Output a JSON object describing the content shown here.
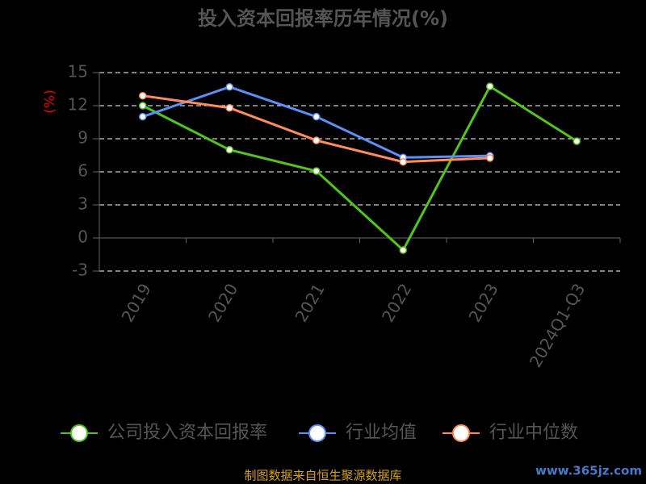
{
  "chart_data": {
    "type": "line",
    "title": "投入资本回报率历年情况(%)",
    "y_label": "(%)",
    "categories": [
      "2019",
      "2020",
      "2021",
      "2022",
      "2023",
      "2024Q1-Q3"
    ],
    "series": [
      {
        "name": "公司投入资本回报率",
        "color": "#52c41a",
        "values": [
          12.0,
          8.0,
          6.07,
          -1.1,
          13.75,
          8.78
        ]
      },
      {
        "name": "行业均值",
        "color": "#5b8ff9",
        "values": [
          11.0,
          13.7,
          11.0,
          7.3,
          7.45,
          null
        ]
      },
      {
        "name": "行业中位数",
        "color": "#ff8c5a",
        "values": [
          12.9,
          11.8,
          8.85,
          6.9,
          7.25,
          null
        ]
      }
    ],
    "ylim": [
      -3,
      15
    ],
    "yticks": [
      -3,
      0,
      3,
      6,
      9,
      12,
      15
    ],
    "grid": true,
    "source": "制图数据来自恒生聚源数据库",
    "watermark": "www.365jz.com"
  }
}
